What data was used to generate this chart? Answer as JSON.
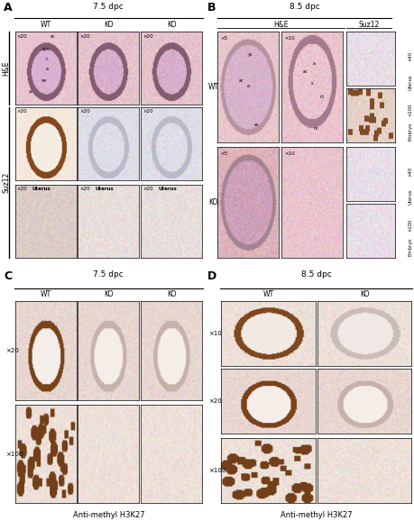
{
  "panel_A": {
    "label": "A",
    "title": "7.5 dpc",
    "col_labels": [
      "WT",
      "KO",
      "KO"
    ],
    "row_labels": [
      "H&E",
      "Suz12"
    ]
  },
  "panel_B": {
    "label": "B",
    "title": "8.5 dpc",
    "col_labels": [
      "H&E",
      "Suz12"
    ],
    "row_labels": [
      "WT",
      "KO"
    ]
  },
  "panel_C": {
    "label": "C",
    "title": "7.5 dpc",
    "col_labels": [
      "WT",
      "KO",
      "KO"
    ],
    "row_labels": [
      "×20",
      "×100"
    ],
    "xlabel": "Anti-methyl H3K27"
  },
  "panel_D": {
    "label": "D",
    "title": "8.5 dpc",
    "col_labels": [
      "WT",
      "KO"
    ],
    "row_labels": [
      "×10",
      "×20",
      "×100"
    ],
    "xlabel": "Anti-methyl H3K27"
  }
}
